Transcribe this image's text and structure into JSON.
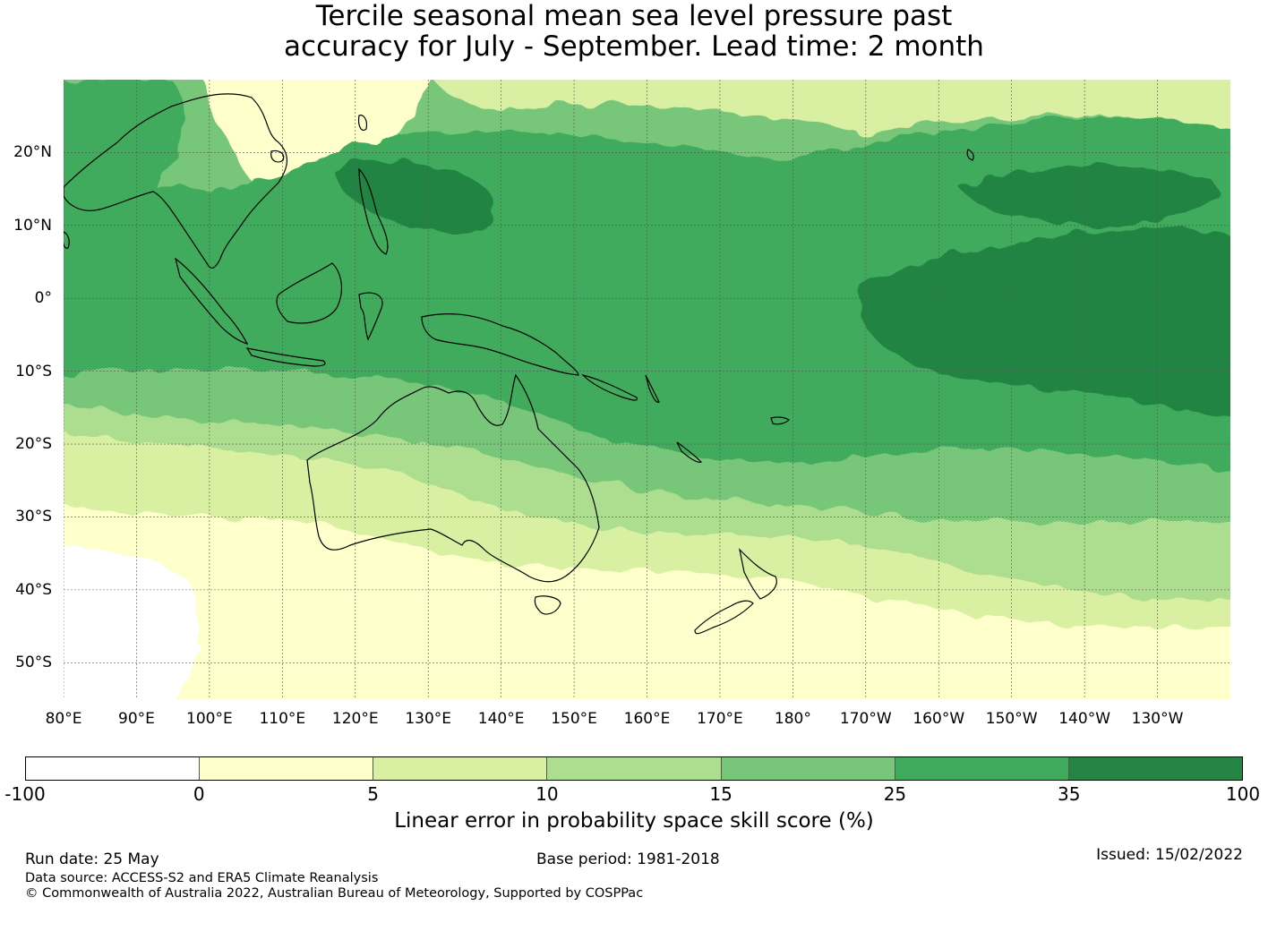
{
  "title": {
    "line1": "Tercile seasonal mean sea level pressure past",
    "line2": "accuracy for July - September. Lead time: 2 month"
  },
  "map": {
    "lat_labels": [
      "20°N",
      "10°N",
      "0°",
      "10°S",
      "20°S",
      "30°S",
      "40°S",
      "50°S"
    ],
    "lon_labels": [
      "80°E",
      "90°E",
      "100°E",
      "110°E",
      "120°E",
      "130°E",
      "140°E",
      "150°E",
      "160°E",
      "170°E",
      "180°",
      "170°W",
      "160°W",
      "150°W",
      "140°W",
      "130°W"
    ],
    "extent": {
      "lon_min": 80,
      "lon_max": 240,
      "lat_min": -55,
      "lat_max": 30
    }
  },
  "colorbar": {
    "ticks": [
      "-100",
      "0",
      "5",
      "10",
      "15",
      "25",
      "35",
      "100"
    ],
    "colors": [
      "#ffffff",
      "#ffffcc",
      "#d9f0a3",
      "#addd8e",
      "#78c679",
      "#41ab5d",
      "#238443"
    ],
    "label": "Linear error in probability space skill score (%)"
  },
  "footer": {
    "run_date": "Run date: 25 May",
    "base_period": "Base period: 1981-2018",
    "issued": "Issued: 15/02/2022",
    "data_source": "Data source: ACCESS-S2 and ERA5 Climate Reanalysis",
    "copyright": "© Commonwealth of Australia 2022, Australian Bureau of Meteorology, Supported by COSPPac"
  }
}
